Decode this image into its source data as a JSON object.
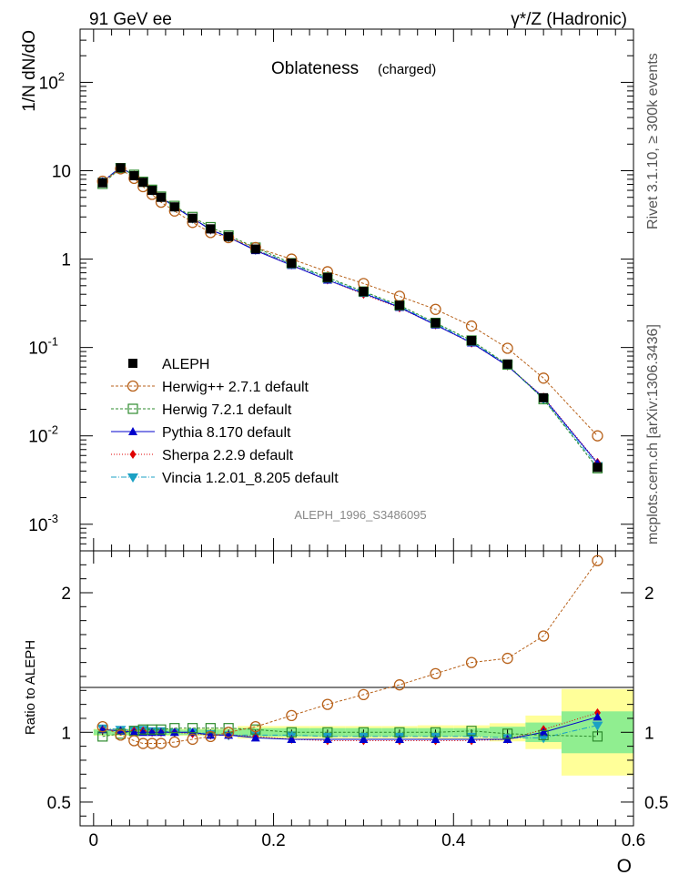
{
  "header": {
    "left": "91 GeV ee",
    "right": "γ*/Z (Hadronic)"
  },
  "side_labels": {
    "rivet": "Rivet 3.1.10, ≥ 300k events",
    "mcplots": "mcplots.cern.ch [arXiv:1306.3436]"
  },
  "colors": {
    "ALEPH": "#000000",
    "Herwig++": "#b8621b",
    "Herwig7": "#2e8b2e",
    "Pythia": "#0000cc",
    "Sherpa": "#e00000",
    "Vincia": "#1ba1c4",
    "band_inner": "#90ee90",
    "band_outer": "#ffff99"
  },
  "chart_data": [
    {
      "type": "scatter",
      "panel": "main",
      "title": "Oblateness",
      "subtitle": "(charged)",
      "ylabel": "1/N dN/dO",
      "xlabel": "O",
      "xlim": [
        -0.015,
        0.6
      ],
      "ylim": [
        0.0005,
        400
      ],
      "yscale": "log",
      "analysis_tag": "ALEPH_1996_S3486095",
      "x_ticks": [
        "0",
        "0.2",
        "0.4",
        "0.6"
      ],
      "y_ticks": [
        {
          "base": "10",
          "exp": "-3",
          "v": 0.001
        },
        {
          "base": "10",
          "exp": "-2",
          "v": 0.01
        },
        {
          "base": "10",
          "exp": "-1",
          "v": 0.1
        },
        {
          "base": "1",
          "exp": "",
          "v": 1
        },
        {
          "base": "10",
          "exp": "",
          "v": 10
        },
        {
          "base": "10",
          "exp": "2",
          "v": 100
        }
      ],
      "x": [
        0.01,
        0.03,
        0.045,
        0.055,
        0.065,
        0.075,
        0.09,
        0.11,
        0.13,
        0.15,
        0.18,
        0.22,
        0.26,
        0.3,
        0.34,
        0.38,
        0.42,
        0.46,
        0.5,
        0.56
      ],
      "series": [
        {
          "name": "ALEPH",
          "key": "ALEPH",
          "label": "ALEPH",
          "marker": "square-filled",
          "dash": "",
          "values": [
            7.3,
            10.8,
            8.8,
            7.4,
            6.0,
            5.0,
            3.9,
            2.9,
            2.2,
            1.8,
            1.3,
            0.9,
            0.62,
            0.43,
            0.3,
            0.19,
            0.12,
            0.065,
            0.027,
            0.0044
          ]
        },
        {
          "name": "Herwig++",
          "key": "Herwig++",
          "label": "Herwig++ 2.7.1 default",
          "marker": "circle-open",
          "dash": "3,2",
          "values": [
            7.6,
            10.5,
            8.2,
            6.6,
            5.4,
            4.4,
            3.5,
            2.6,
            2.0,
            1.75,
            1.35,
            1.0,
            0.72,
            0.53,
            0.38,
            0.27,
            0.175,
            0.098,
            0.045,
            0.01
          ]
        },
        {
          "name": "Herwig7",
          "key": "Herwig7",
          "label": "Herwig 7.2.1 default",
          "marker": "square-open",
          "dash": "3,2",
          "values": [
            7.1,
            10.7,
            9.0,
            7.5,
            6.1,
            5.1,
            4.0,
            3.0,
            2.3,
            1.85,
            1.35,
            0.9,
            0.62,
            0.43,
            0.3,
            0.19,
            0.12,
            0.064,
            0.026,
            0.0043
          ]
        },
        {
          "name": "Pythia",
          "key": "Pythia",
          "label": "Pythia 8.170 default",
          "marker": "triangle-up",
          "dash": "",
          "values": [
            7.5,
            10.9,
            8.8,
            7.4,
            6.0,
            5.0,
            3.9,
            2.9,
            2.15,
            1.77,
            1.25,
            0.85,
            0.58,
            0.41,
            0.285,
            0.18,
            0.113,
            0.062,
            0.027,
            0.0049
          ]
        },
        {
          "name": "Sherpa",
          "key": "Sherpa",
          "label": "Sherpa 2.2.9 default",
          "marker": "diamond",
          "dash": "1,2",
          "values": [
            7.5,
            10.9,
            8.9,
            7.5,
            6.0,
            5.0,
            3.9,
            2.9,
            2.15,
            1.77,
            1.27,
            0.86,
            0.58,
            0.4,
            0.28,
            0.18,
            0.112,
            0.062,
            0.0275,
            0.005
          ]
        },
        {
          "name": "Vincia",
          "key": "Vincia",
          "label": "Vincia 1.2.01_8.205 default",
          "marker": "triangle-down",
          "dash": "6,2,1,2",
          "values": [
            7.6,
            11.0,
            8.9,
            7.5,
            6.0,
            5.0,
            3.9,
            2.9,
            2.17,
            1.77,
            1.28,
            0.88,
            0.6,
            0.42,
            0.29,
            0.185,
            0.116,
            0.063,
            0.026,
            0.0046
          ]
        }
      ]
    },
    {
      "type": "scatter",
      "panel": "ratio",
      "ylabel": "Ratio to ALEPH",
      "xlabel": "O",
      "xlim": [
        -0.015,
        0.6
      ],
      "ylim": [
        0.33,
        2.3
      ],
      "y_ticks": [
        {
          "label": "0.5",
          "v": 0.5
        },
        {
          "label": "1",
          "v": 1
        },
        {
          "label": "2",
          "v": 2
        }
      ],
      "bands": {
        "bin_edges": [
          0.0,
          0.02,
          0.04,
          0.05,
          0.06,
          0.07,
          0.08,
          0.1,
          0.12,
          0.14,
          0.16,
          0.2,
          0.24,
          0.28,
          0.32,
          0.36,
          0.4,
          0.44,
          0.48,
          0.52,
          0.6
        ],
        "inner": [
          0.02,
          0.02,
          0.02,
          0.02,
          0.02,
          0.02,
          0.02,
          0.02,
          0.02,
          0.02,
          0.03,
          0.03,
          0.03,
          0.03,
          0.03,
          0.03,
          0.03,
          0.04,
          0.07,
          0.15
        ],
        "outer": [
          0.025,
          0.025,
          0.025,
          0.025,
          0.025,
          0.025,
          0.025,
          0.025,
          0.025,
          0.025,
          0.045,
          0.045,
          0.045,
          0.045,
          0.045,
          0.05,
          0.05,
          0.065,
          0.12,
          0.31
        ]
      },
      "x": [
        0.01,
        0.03,
        0.045,
        0.055,
        0.065,
        0.075,
        0.09,
        0.11,
        0.13,
        0.15,
        0.18,
        0.22,
        0.26,
        0.3,
        0.34,
        0.38,
        0.42,
        0.46,
        0.5,
        0.56
      ],
      "series": [
        {
          "name": "Herwig++",
          "key": "Herwig++",
          "marker": "circle-open",
          "dash": "3,2",
          "values": [
            1.04,
            0.98,
            0.94,
            0.92,
            0.92,
            0.92,
            0.93,
            0.95,
            0.97,
            1.0,
            1.04,
            1.12,
            1.2,
            1.27,
            1.34,
            1.42,
            1.5,
            1.53,
            1.69,
            2.23
          ]
        },
        {
          "name": "Herwig7",
          "key": "Herwig7",
          "marker": "square-open",
          "dash": "3,2",
          "values": [
            0.97,
            0.99,
            1.01,
            1.02,
            1.02,
            1.02,
            1.03,
            1.03,
            1.03,
            1.03,
            1.02,
            1.0,
            1.0,
            1.0,
            1.0,
            1.0,
            1.01,
            0.99,
            0.98,
            0.97
          ]
        },
        {
          "name": "Pythia",
          "key": "Pythia",
          "marker": "triangle-up",
          "dash": "",
          "values": [
            1.02,
            1.01,
            1.0,
            1.0,
            1.0,
            1.0,
            1.0,
            1.0,
            0.98,
            0.98,
            0.96,
            0.95,
            0.95,
            0.95,
            0.95,
            0.95,
            0.95,
            0.95,
            1.0,
            1.11
          ]
        },
        {
          "name": "Sherpa",
          "key": "Sherpa",
          "marker": "diamond",
          "dash": "1,2",
          "values": [
            1.02,
            1.01,
            1.01,
            1.01,
            1.0,
            1.0,
            1.0,
            0.99,
            0.98,
            0.98,
            0.97,
            0.95,
            0.94,
            0.94,
            0.94,
            0.94,
            0.94,
            0.95,
            1.02,
            1.14
          ]
        },
        {
          "name": "Vincia",
          "key": "Vincia",
          "marker": "triangle-down",
          "dash": "6,2,1,2",
          "values": [
            1.03,
            1.02,
            1.02,
            1.02,
            1.01,
            1.01,
            1.0,
            1.0,
            0.99,
            0.98,
            0.98,
            0.98,
            0.97,
            0.97,
            0.97,
            0.97,
            0.97,
            0.96,
            0.96,
            1.05
          ]
        }
      ]
    }
  ]
}
